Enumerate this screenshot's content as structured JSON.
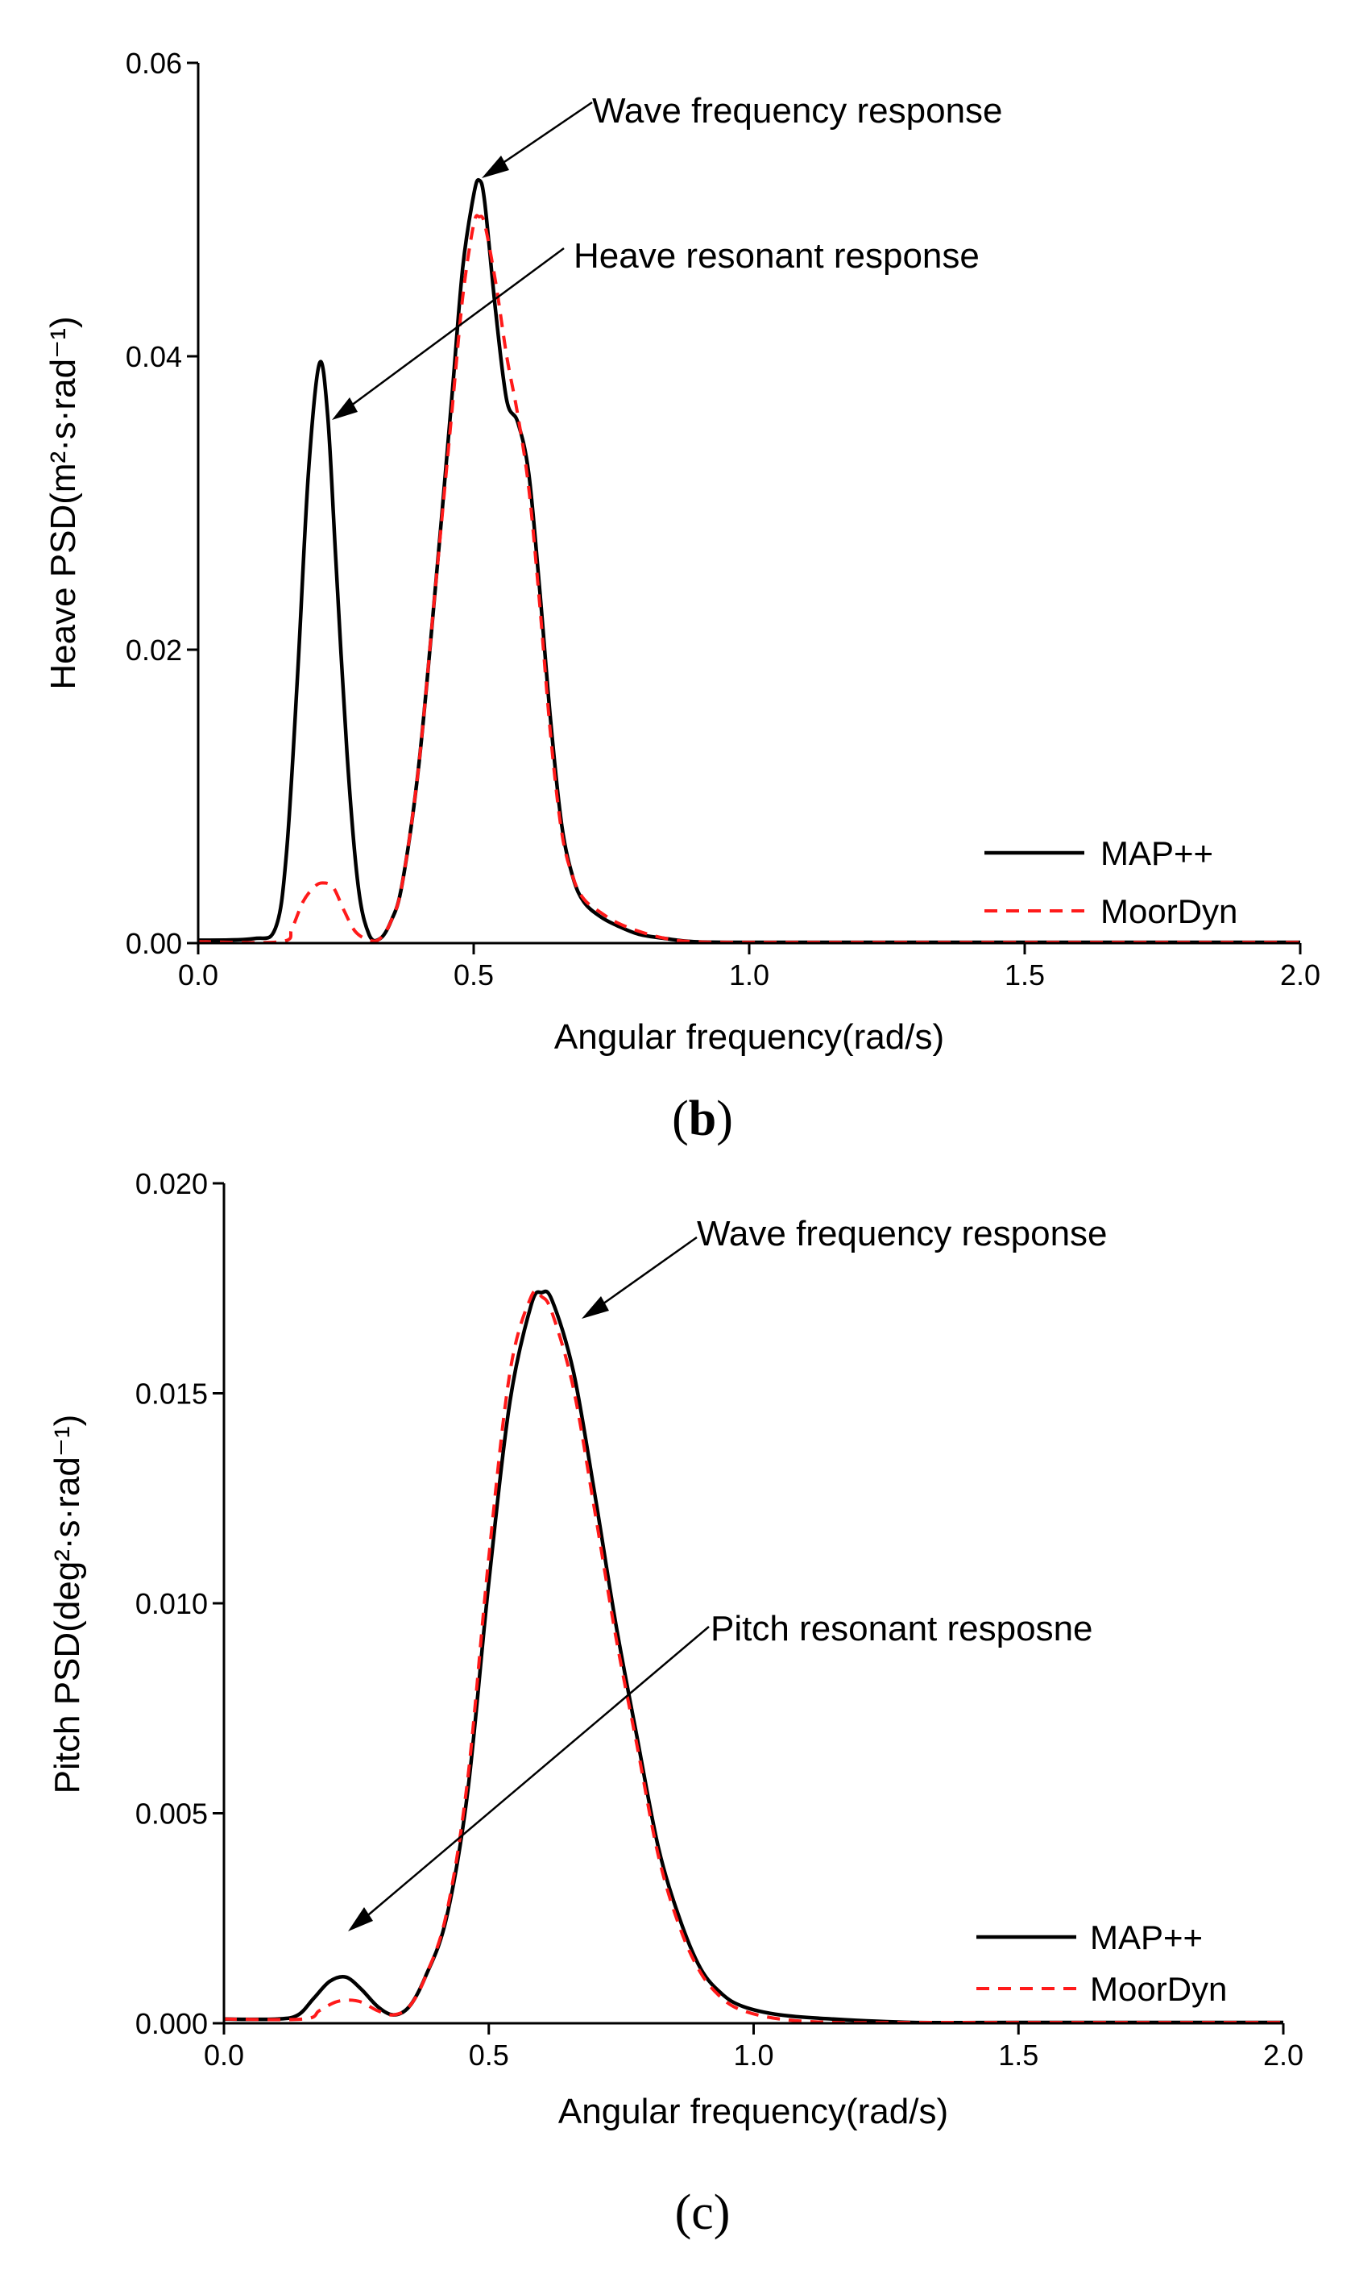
{
  "chart_data": [
    {
      "type": "line",
      "panel_label": "b",
      "xlabel": "Angular frequency(rad/s)",
      "ylabel": "Heave PSD(m²·s·rad⁻¹)",
      "xlim": [
        0,
        2.0
      ],
      "ylim": [
        0,
        0.06
      ],
      "x_ticks": [
        "0.0",
        "0.5",
        "1.0",
        "1.5",
        "2.0"
      ],
      "y_ticks": [
        "0.00",
        "0.02",
        "0.04",
        "0.06"
      ],
      "x_tick_values": [
        0,
        0.5,
        1.0,
        1.5,
        2.0
      ],
      "y_tick_values": [
        0,
        0.02,
        0.04,
        0.06
      ],
      "legend_position": "bottom-right",
      "series": [
        {
          "name": "MAP++",
          "style": "solid",
          "color": "#000000",
          "x": [
            0.0,
            0.1,
            0.14,
            0.16,
            0.18,
            0.2,
            0.22,
            0.235,
            0.25,
            0.27,
            0.29,
            0.31,
            0.33,
            0.35,
            0.37,
            0.4,
            0.43,
            0.46,
            0.48,
            0.5,
            0.51,
            0.52,
            0.54,
            0.56,
            0.58,
            0.6,
            0.62,
            0.64,
            0.66,
            0.68,
            0.7,
            0.73,
            0.76,
            0.8,
            0.85,
            0.9,
            1.0,
            1.5,
            2.0
          ],
          "y": [
            0.0002,
            0.0003,
            0.001,
            0.006,
            0.018,
            0.032,
            0.0395,
            0.036,
            0.026,
            0.013,
            0.004,
            0.0006,
            0.0003,
            0.0015,
            0.004,
            0.012,
            0.024,
            0.037,
            0.046,
            0.051,
            0.052,
            0.0505,
            0.043,
            0.037,
            0.0355,
            0.032,
            0.024,
            0.015,
            0.008,
            0.0045,
            0.0028,
            0.0018,
            0.0012,
            0.0006,
            0.0003,
            0.0001,
            0.0,
            0.0,
            0.0
          ]
        },
        {
          "name": "MoorDyn",
          "style": "dashed",
          "color": "#ff1a1a",
          "x": [
            0.0,
            0.15,
            0.17,
            0.19,
            0.21,
            0.225,
            0.245,
            0.265,
            0.285,
            0.31,
            0.33,
            0.35,
            0.37,
            0.4,
            0.43,
            0.46,
            0.48,
            0.5,
            0.51,
            0.52,
            0.54,
            0.56,
            0.58,
            0.6,
            0.62,
            0.64,
            0.66,
            0.68,
            0.7,
            0.73,
            0.76,
            0.8,
            0.85,
            0.9,
            1.0,
            1.5,
            2.0
          ],
          "y": [
            0.0001,
            0.0001,
            0.001,
            0.0028,
            0.0038,
            0.0041,
            0.0038,
            0.0022,
            0.0008,
            0.0002,
            0.0003,
            0.0015,
            0.004,
            0.012,
            0.024,
            0.036,
            0.044,
            0.049,
            0.0495,
            0.049,
            0.045,
            0.04,
            0.036,
            0.031,
            0.023,
            0.014,
            0.0075,
            0.0045,
            0.003,
            0.0021,
            0.0014,
            0.0008,
            0.0003,
            0.0001,
            0.0,
            0.0,
            0.0
          ]
        }
      ],
      "annotations": [
        {
          "text": "Wave frequency response",
          "arrow_to": [
            0.51,
            0.052
          ],
          "text_anchor": [
            0.72,
            0.0565
          ]
        },
        {
          "text": "Heave resonant response",
          "arrow_to": [
            0.24,
            0.036
          ],
          "text_anchor": [
            0.7,
            0.0467
          ]
        }
      ]
    },
    {
      "type": "line",
      "panel_label": "c",
      "xlabel": "Angular frequency(rad/s)",
      "ylabel": "Pitch PSD(deg²·s·rad⁻¹)",
      "xlim": [
        0,
        2.0
      ],
      "ylim": [
        0,
        0.02
      ],
      "x_ticks": [
        "0.0",
        "0.5",
        "1.0",
        "1.5",
        "2.0"
      ],
      "y_ticks": [
        "0.000",
        "0.005",
        "0.010",
        "0.015",
        "0.020"
      ],
      "x_tick_values": [
        0,
        0.5,
        1.0,
        1.5,
        2.0
      ],
      "y_tick_values": [
        0,
        0.005,
        0.01,
        0.015,
        0.02
      ],
      "legend_position": "bottom-right",
      "series": [
        {
          "name": "MAP++",
          "style": "solid",
          "color": "#000000",
          "x": [
            0.0,
            0.1,
            0.14,
            0.17,
            0.2,
            0.23,
            0.26,
            0.29,
            0.32,
            0.35,
            0.38,
            0.42,
            0.46,
            0.5,
            0.54,
            0.58,
            0.6,
            0.62,
            0.66,
            0.7,
            0.74,
            0.78,
            0.82,
            0.86,
            0.9,
            0.94,
            0.98,
            1.05,
            1.15,
            1.3,
            1.5,
            2.0
          ],
          "y": [
            0.0001,
            0.0001,
            0.0002,
            0.0006,
            0.001,
            0.0011,
            0.0008,
            0.0004,
            0.0002,
            0.0004,
            0.0011,
            0.0025,
            0.0055,
            0.0105,
            0.0148,
            0.0171,
            0.0174,
            0.0172,
            0.0155,
            0.0126,
            0.0095,
            0.0068,
            0.0042,
            0.0025,
            0.0013,
            0.0007,
            0.0004,
            0.0002,
            0.0001,
            0.0,
            0.0,
            0.0
          ]
        },
        {
          "name": "MoorDyn",
          "style": "dashed",
          "color": "#ff1a1a",
          "x": [
            0.0,
            0.15,
            0.18,
            0.21,
            0.235,
            0.26,
            0.29,
            0.32,
            0.35,
            0.38,
            0.42,
            0.46,
            0.5,
            0.54,
            0.58,
            0.6,
            0.62,
            0.66,
            0.7,
            0.74,
            0.78,
            0.82,
            0.86,
            0.9,
            0.94,
            0.98,
            1.05,
            1.15,
            1.3,
            1.5,
            2.0
          ],
          "y": [
            0.0001,
            0.0001,
            0.0003,
            0.0005,
            0.00055,
            0.0005,
            0.0003,
            0.0002,
            0.0004,
            0.0011,
            0.0026,
            0.0058,
            0.0111,
            0.0155,
            0.0173,
            0.0173,
            0.0169,
            0.0151,
            0.0122,
            0.0092,
            0.0066,
            0.004,
            0.0023,
            0.0012,
            0.0006,
            0.0003,
            0.0001,
            0.0,
            0.0,
            0.0,
            0.0
          ]
        }
      ],
      "annotations": [
        {
          "text": "Wave frequency response",
          "arrow_to": [
            0.645,
            0.0166
          ],
          "text_anchor": [
            0.895,
            0.0187
          ]
        },
        {
          "text": "Pitch resonant resposne",
          "arrow_to": [
            0.23,
            0.0013
          ],
          "text_anchor": [
            0.93,
            0.01
          ]
        }
      ]
    }
  ]
}
